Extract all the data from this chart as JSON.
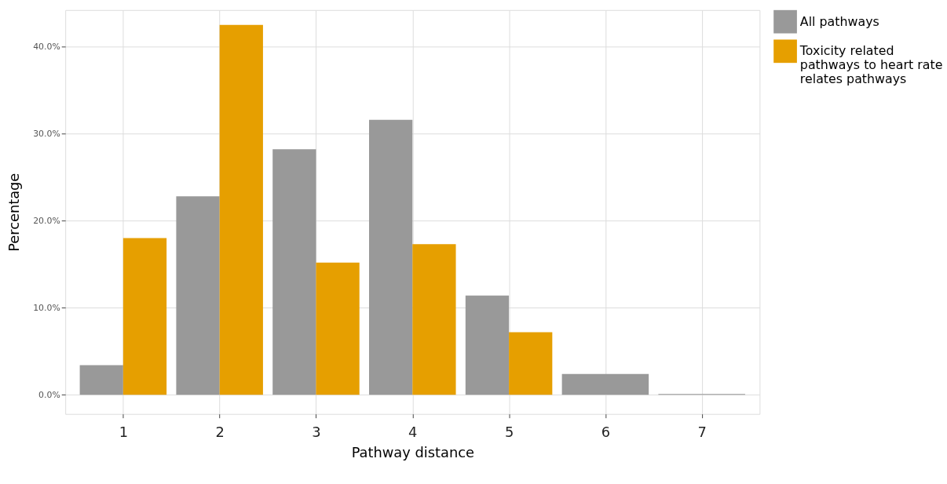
{
  "chart_data": {
    "type": "bar",
    "xlabel": "Pathway distance",
    "ylabel": "Percentage",
    "categories": [
      "1",
      "2",
      "3",
      "4",
      "5",
      "6",
      "7"
    ],
    "series": [
      {
        "name": "All pathways",
        "color": "#999999",
        "values": [
          3.4,
          22.8,
          28.2,
          31.6,
          11.4,
          2.4,
          0.1
        ]
      },
      {
        "name": "Toxicity related pathways to heart rate relates pathways",
        "color": "#e69f00",
        "values": [
          18.0,
          42.5,
          15.2,
          17.3,
          7.2,
          null,
          null
        ]
      }
    ],
    "ylim": [
      -2.2,
      44.2
    ],
    "yticks": [
      {
        "value": 0,
        "label": "0.0%"
      },
      {
        "value": 10,
        "label": "10.0%"
      },
      {
        "value": 20,
        "label": "20.0%"
      },
      {
        "value": 30,
        "label": "30.0%"
      },
      {
        "value": 40,
        "label": "40.0%"
      }
    ],
    "grid": true,
    "legend": "right"
  }
}
